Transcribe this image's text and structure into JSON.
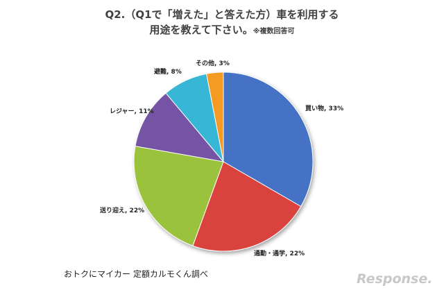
{
  "title": {
    "line1": "Q2.（Q1で「増えた」と答えた方）車を利用する",
    "line2": "用途を教えて下さい。",
    "note": "※複数回答可"
  },
  "chart_data": {
    "type": "pie",
    "slices": [
      {
        "label": "買い物",
        "value": 33,
        "text": "買い物, 33%",
        "color": "#4472c4"
      },
      {
        "label": "通勤・通学",
        "value": 22,
        "text": "通勤・通学, 22%",
        "color": "#d9423d"
      },
      {
        "label": "送り迎え",
        "value": 22,
        "text": "送り迎え, 22%",
        "color": "#9bc23c"
      },
      {
        "label": "レジャー",
        "value": 11,
        "text": "レジャー, 11%",
        "color": "#7453a5"
      },
      {
        "label": "避難",
        "value": 8,
        "text": "避難, 8%",
        "color": "#38b6d5"
      },
      {
        "label": "その他",
        "value": 3,
        "text": "その他, 3%",
        "color": "#f59a23"
      }
    ],
    "start_angle_deg": 0,
    "direction": "clockwise"
  },
  "source": "おトクにマイカー 定額カルモくん調べ",
  "logo": "Response."
}
